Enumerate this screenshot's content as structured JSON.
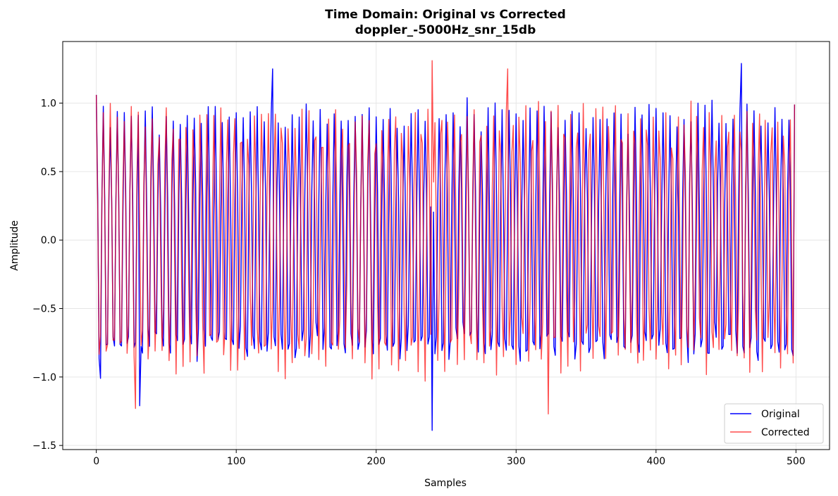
{
  "chart_data": {
    "type": "line",
    "title": "Time Domain: Original vs Corrected",
    "subtitle": "doppler_-5000Hz_snr_15db",
    "xlabel": "Samples",
    "ylabel": "Amplitude",
    "xlim": [
      -24,
      524
    ],
    "ylim": [
      -1.53,
      1.45
    ],
    "xticks": [
      0,
      100,
      200,
      300,
      400,
      500
    ],
    "xtick_labels": [
      "0",
      "100",
      "200",
      "300",
      "400",
      "500"
    ],
    "yticks": [
      -1.5,
      -1.0,
      -0.5,
      0.0,
      0.5,
      1.0
    ],
    "ytick_labels": [
      "−1.5",
      "−1.0",
      "−0.5",
      "0.0",
      "0.5",
      "1.0"
    ],
    "grid": true,
    "legend_position": "lower-right",
    "num_samples": 500,
    "series": [
      {
        "name": "Original",
        "color": "#0000ff",
        "generator": {
          "amplitude": 0.92,
          "freq_cycles_per_sample": 0.2,
          "phase_drift_per_sample": 0.0,
          "noise": 0.12,
          "seed": 7
        },
        "key_points": [
          {
            "x": 0,
            "y": 1.06
          },
          {
            "x": 3,
            "y": -1.01
          },
          {
            "x": 31,
            "y": -1.21
          },
          {
            "x": 126,
            "y": 1.25
          },
          {
            "x": 240,
            "y": -1.39
          },
          {
            "x": 461,
            "y": 1.29
          },
          {
            "x": 499,
            "y": 0.99
          }
        ]
      },
      {
        "name": "Corrected",
        "color": "#ff0000",
        "opacity": 0.7,
        "generator": {
          "amplitude": 0.92,
          "freq_cycles_per_sample": 0.2,
          "phase_drift_per_sample": 0.0035,
          "noise": 0.12,
          "seed": 19
        },
        "key_points": [
          {
            "x": 0,
            "y": 1.06
          },
          {
            "x": 28,
            "y": -1.23
          },
          {
            "x": 240,
            "y": 1.31
          },
          {
            "x": 294,
            "y": 1.25
          },
          {
            "x": 323,
            "y": -1.27
          },
          {
            "x": 499,
            "y": 0.99
          }
        ]
      }
    ]
  }
}
